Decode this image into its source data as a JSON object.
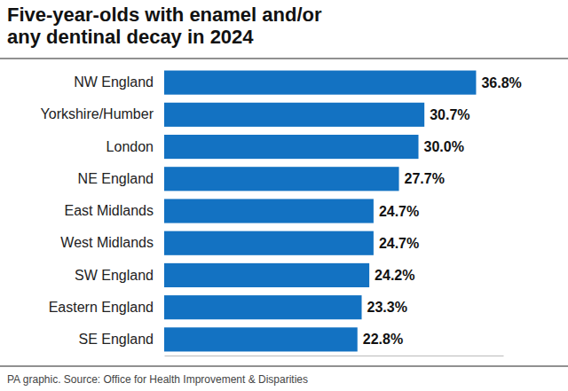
{
  "chart_data": {
    "type": "bar",
    "orientation": "horizontal",
    "title": "Five-year-olds with enamel and/or any dentinal decay in 2024",
    "source": "PA graphic. Source: Office for Health Improvement & Disparities",
    "categories": [
      "NW England",
      "Yorkshire/Humber",
      "London",
      "NE England",
      "East Midlands",
      "West Midlands",
      "SW England",
      "Eastern England",
      "SE England"
    ],
    "values": [
      36.8,
      30.7,
      30.0,
      27.7,
      24.7,
      24.7,
      24.2,
      23.3,
      22.8
    ],
    "value_labels": [
      "36.8%",
      "30.7%",
      "30.0%",
      "27.7%",
      "24.7%",
      "24.7%",
      "24.2%",
      "23.3%",
      "22.8%"
    ],
    "color": "#1372c2",
    "xlim": [
      0,
      40
    ],
    "data_labels": true,
    "tick_labels": "y",
    "grid": false
  }
}
